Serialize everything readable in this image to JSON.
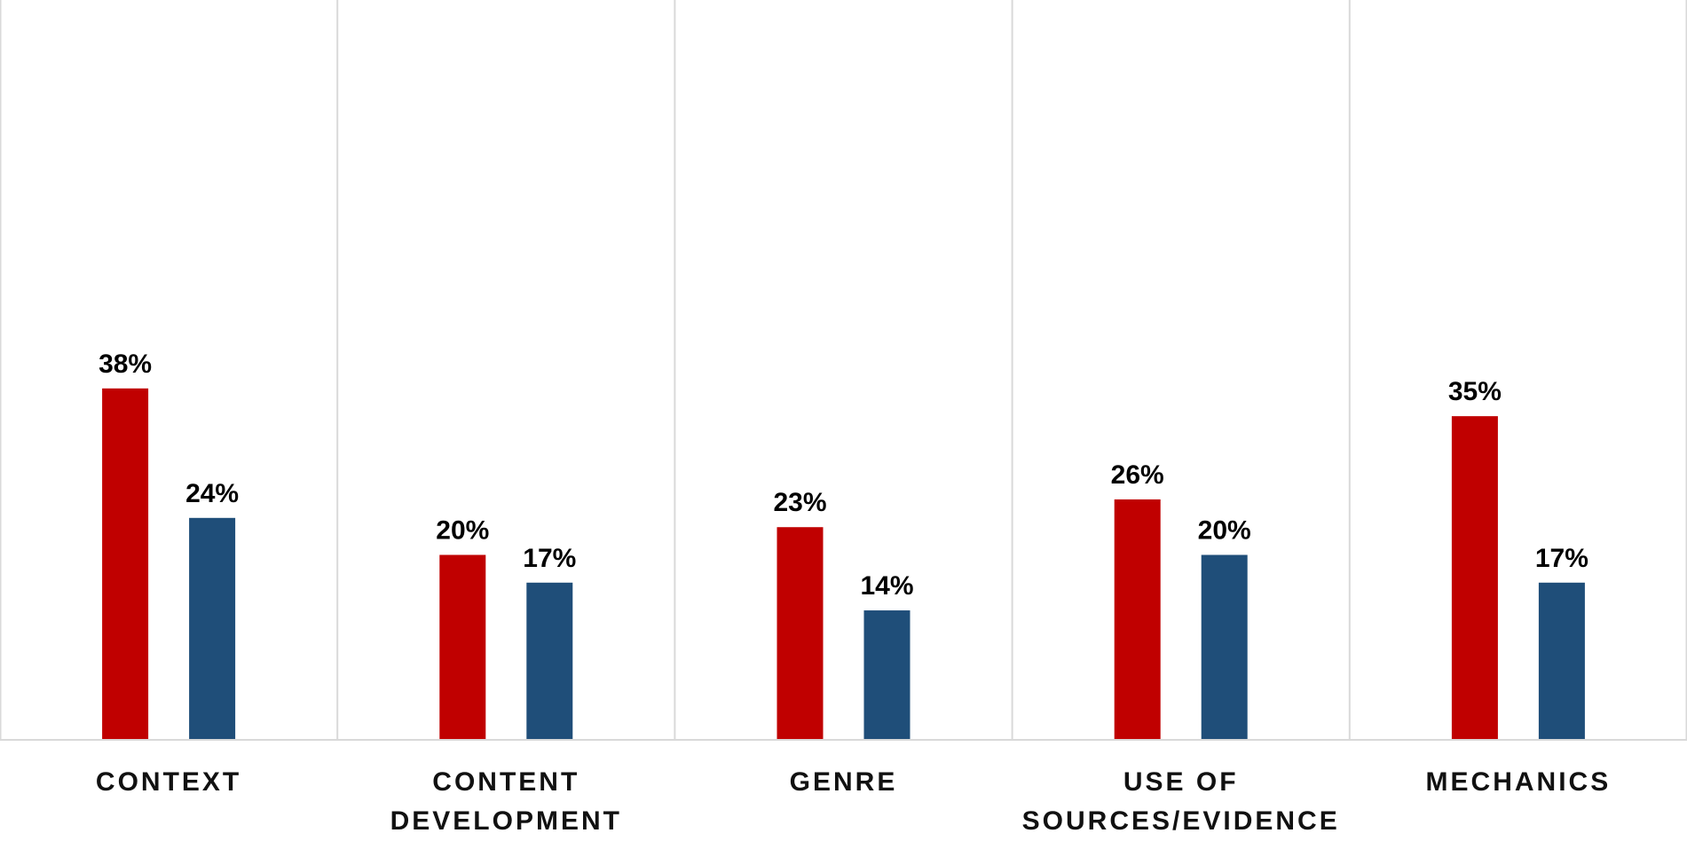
{
  "chart_data": {
    "type": "bar",
    "categories": [
      "CONTEXT",
      "CONTENT DEVELOPMENT",
      "GENRE",
      "USE OF SOURCES/EVIDENCE",
      "MECHANICS"
    ],
    "category_lines": [
      [
        "CONTEXT"
      ],
      [
        "CONTENT",
        "DEVELOPMENT"
      ],
      [
        "GENRE"
      ],
      [
        "USE OF",
        "SOURCES/EVIDENCE"
      ],
      [
        "MECHANICS"
      ]
    ],
    "series": [
      {
        "values": [
          38,
          20,
          23,
          26,
          35
        ],
        "labels": [
          "38%",
          "20%",
          "23%",
          "26%",
          "35%"
        ],
        "color": "#C00000"
      },
      {
        "values": [
          24,
          17,
          14,
          20,
          17
        ],
        "labels": [
          "24%",
          "17%",
          "14%",
          "20%",
          "17%"
        ],
        "color": "#1F4E79"
      }
    ],
    "title": "",
    "xlabel": "",
    "ylabel": "",
    "ylim": [
      0,
      80
    ],
    "grid": false,
    "legend": "none",
    "category_dividers": true
  }
}
